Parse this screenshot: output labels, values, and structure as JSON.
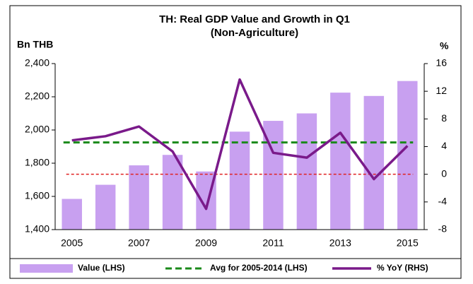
{
  "chart_data": {
    "type": "bar-line",
    "title": "TH: Real GDP Value and Growth in Q1",
    "subtitle": "(Non-Agriculture)",
    "y_label": "Bn THB",
    "y2_label": "%",
    "categories": [
      "2005",
      null,
      "2007",
      null,
      "2009",
      null,
      "2011",
      null,
      "2013",
      null,
      "2015"
    ],
    "series": [
      {
        "name": "Value (LHS)",
        "color": "#c8a0f0",
        "values": [
          1585,
          1670,
          1787,
          1850,
          1750,
          1990,
          2055,
          2100,
          2225,
          2205,
          2295
        ]
      },
      {
        "name": "Avg for 2005-2014 (LHS)",
        "color": "#1a8a1a",
        "value": 1925
      },
      {
        "name": "% YoY (RHS)",
        "color": "#7a1a8a",
        "axis": "y2",
        "values": [
          4.9,
          5.5,
          6.9,
          3.3,
          -5.0,
          13.7,
          3.1,
          2.4,
          6.0,
          -0.7,
          4.1
        ]
      }
    ],
    "zero_line_color": "#e02020",
    "ylim": [
      1400,
      2400
    ],
    "yticks": [
      {
        "value": 1400,
        "label": "1,400"
      },
      {
        "value": 1600,
        "label": "1,600"
      },
      {
        "value": 1800,
        "label": "1,800"
      },
      {
        "value": 2000,
        "label": "2,000"
      },
      {
        "value": 2200,
        "label": "2,200"
      },
      {
        "value": 2400,
        "label": "2,400"
      }
    ],
    "y2lim": [
      -8,
      16
    ],
    "y2ticks": [
      -8,
      -4,
      0,
      4,
      8,
      12,
      16
    ]
  }
}
